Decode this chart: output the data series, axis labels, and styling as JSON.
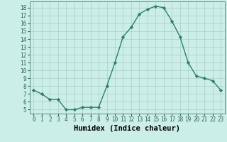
{
  "x": [
    0,
    1,
    2,
    3,
    4,
    5,
    6,
    7,
    8,
    9,
    10,
    11,
    12,
    13,
    14,
    15,
    16,
    17,
    18,
    19,
    20,
    21,
    22,
    23
  ],
  "y": [
    7.5,
    7.0,
    6.3,
    6.3,
    5.0,
    5.0,
    5.3,
    5.3,
    5.3,
    8.0,
    11.0,
    14.3,
    15.5,
    17.2,
    17.8,
    18.2,
    18.0,
    16.3,
    14.3,
    11.0,
    9.3,
    9.0,
    8.7,
    7.5
  ],
  "line_color": "#2e7d6e",
  "marker": "D",
  "marker_size": 2.2,
  "bg_color": "#cceee8",
  "grid_color": "#aacccc",
  "xlabel": "Humidex (Indice chaleur)",
  "xlabel_fontsize": 7.5,
  "ylim": [
    4.5,
    18.8
  ],
  "xlim": [
    -0.5,
    23.5
  ],
  "yticks": [
    5,
    6,
    7,
    8,
    9,
    10,
    11,
    12,
    13,
    14,
    15,
    16,
    17,
    18
  ],
  "xticks": [
    0,
    1,
    2,
    3,
    4,
    5,
    6,
    7,
    8,
    9,
    10,
    11,
    12,
    13,
    14,
    15,
    16,
    17,
    18,
    19,
    20,
    21,
    22,
    23
  ],
  "tick_fontsize": 5.5,
  "line_width": 1.0
}
